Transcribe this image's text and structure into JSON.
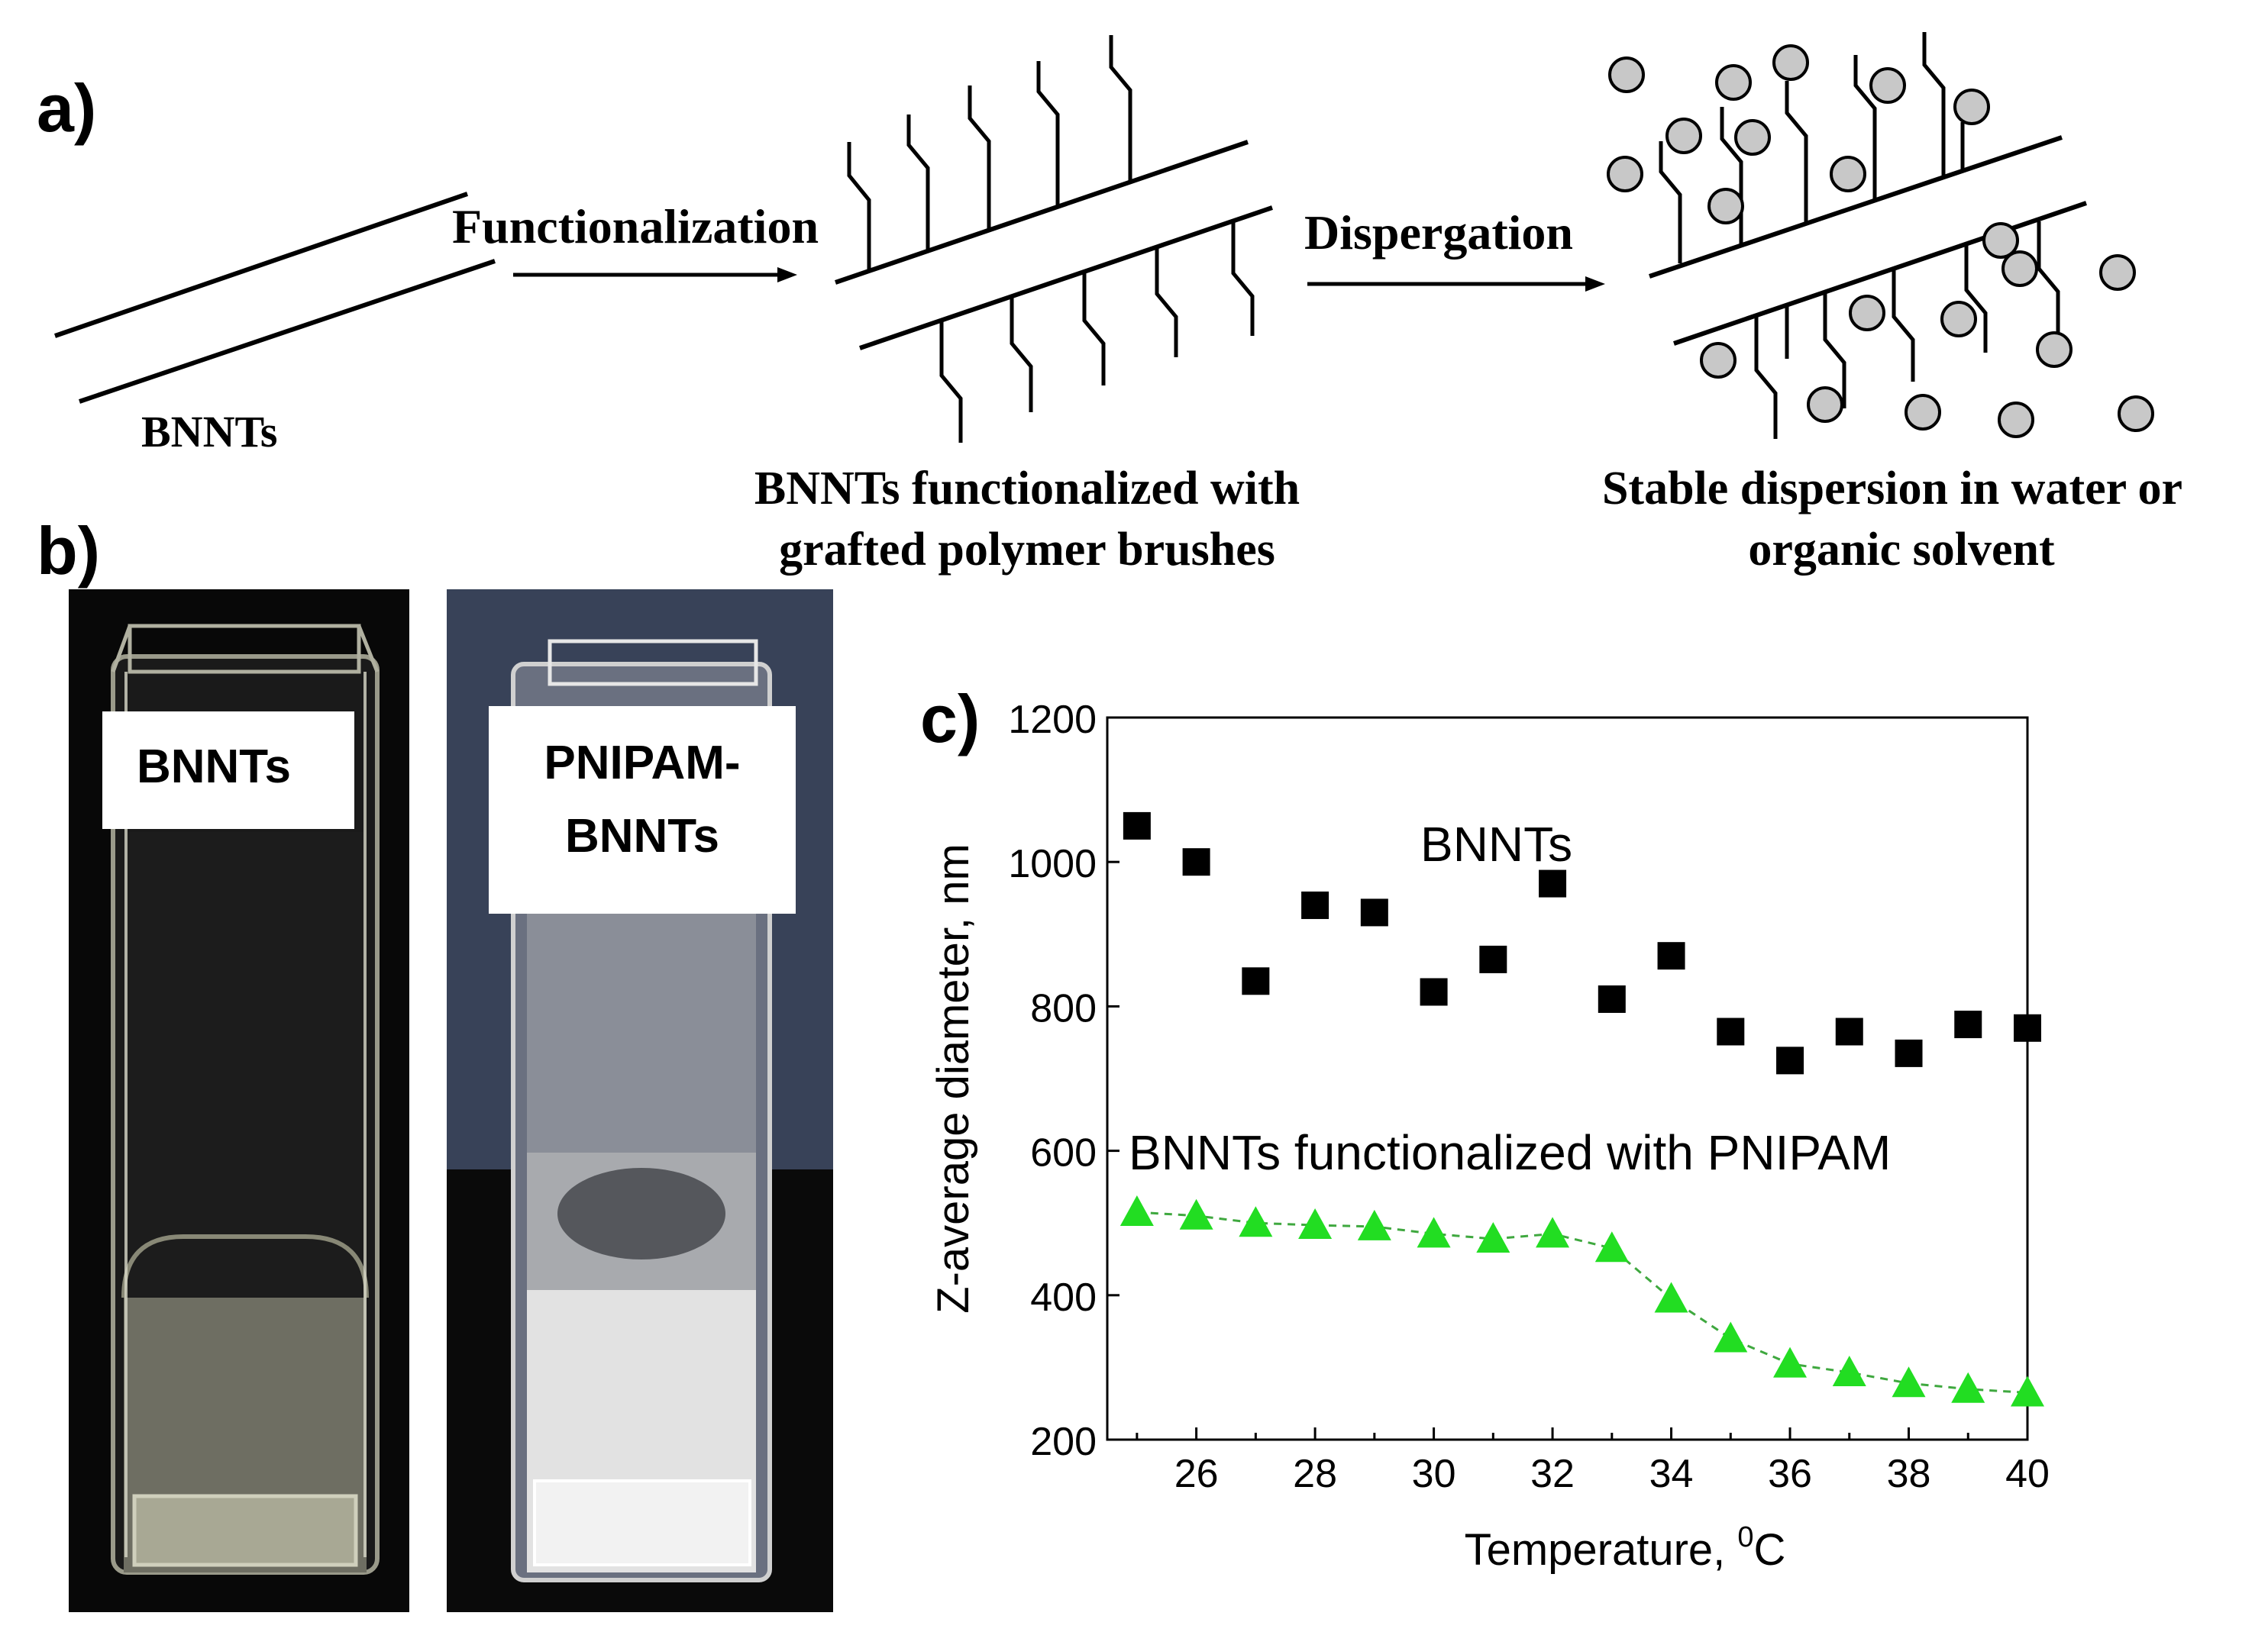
{
  "panel_a": {
    "label": "a)",
    "step1_label": "Functionalization",
    "step2_label": "Dispergation",
    "bnnts_label": "BNNTs",
    "functionalized_label_line1": "BNNTs functionalized with",
    "functionalized_label_line2": "grafted polymer brushes",
    "dispersion_label_line1": "Stable dispersion in water or",
    "dispersion_label_line2": "organic solvent"
  },
  "panel_b": {
    "label": "b)",
    "left_cuvette_label": "BNNTs",
    "right_cuvette_label_line1": "PNIPAM-",
    "right_cuvette_label_line2": "BNNTs"
  },
  "panel_c": {
    "label": "c)",
    "chart_data": {
      "type": "scatter",
      "xlabel": "Temperature, ",
      "xlabel_sup": "0",
      "xlabel_unit": "C",
      "ylabel": "Z-average diameter, nm",
      "xlim": [
        24.5,
        40
      ],
      "ylim": [
        200,
        1200
      ],
      "xticks": [
        26,
        28,
        30,
        32,
        34,
        36,
        38,
        40
      ],
      "yticks": [
        200,
        400,
        600,
        800,
        1000,
        1200
      ],
      "series": [
        {
          "name": "BNNTs",
          "marker": "square",
          "color": "#000000",
          "x": [
            25,
            26,
            27,
            28,
            29,
            30,
            31,
            32,
            33,
            34,
            35,
            36,
            37,
            38,
            39,
            40
          ],
          "y": [
            1050,
            1000,
            835,
            940,
            930,
            820,
            865,
            970,
            810,
            870,
            765,
            725,
            765,
            735,
            775,
            770
          ]
        },
        {
          "name": "BNNTs functionalized with PNIPAM",
          "marker": "triangle",
          "color": "#22dd22",
          "line": "dashed",
          "x": [
            25,
            26,
            27,
            28,
            29,
            30,
            31,
            32,
            33,
            34,
            35,
            36,
            37,
            38,
            39,
            40
          ],
          "y": [
            515,
            510,
            500,
            497,
            495,
            485,
            478,
            485,
            465,
            395,
            340,
            305,
            293,
            278,
            270,
            265
          ]
        }
      ]
    }
  }
}
